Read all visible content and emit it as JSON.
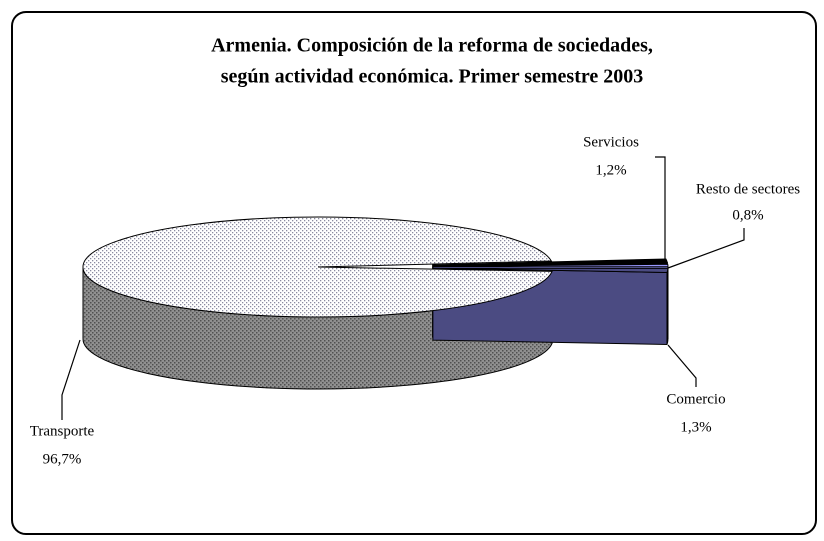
{
  "chart_data": {
    "type": "pie",
    "title": [
      "Armenia. Composición de la reforma de sociedades,",
      "según actividad económica. Primer semestre 2003"
    ],
    "categories": [
      "Transporte",
      "Servicios",
      "Resto de sectores",
      "Comercio"
    ],
    "values": [
      96.7,
      1.2,
      0.8,
      1.3
    ],
    "value_labels": [
      "96,7%",
      "1,2%",
      "0,8%",
      "1,3%"
    ],
    "colors": [
      "#f4f4f8",
      "#000000",
      "#9999ff",
      "#4b4b82"
    ]
  }
}
